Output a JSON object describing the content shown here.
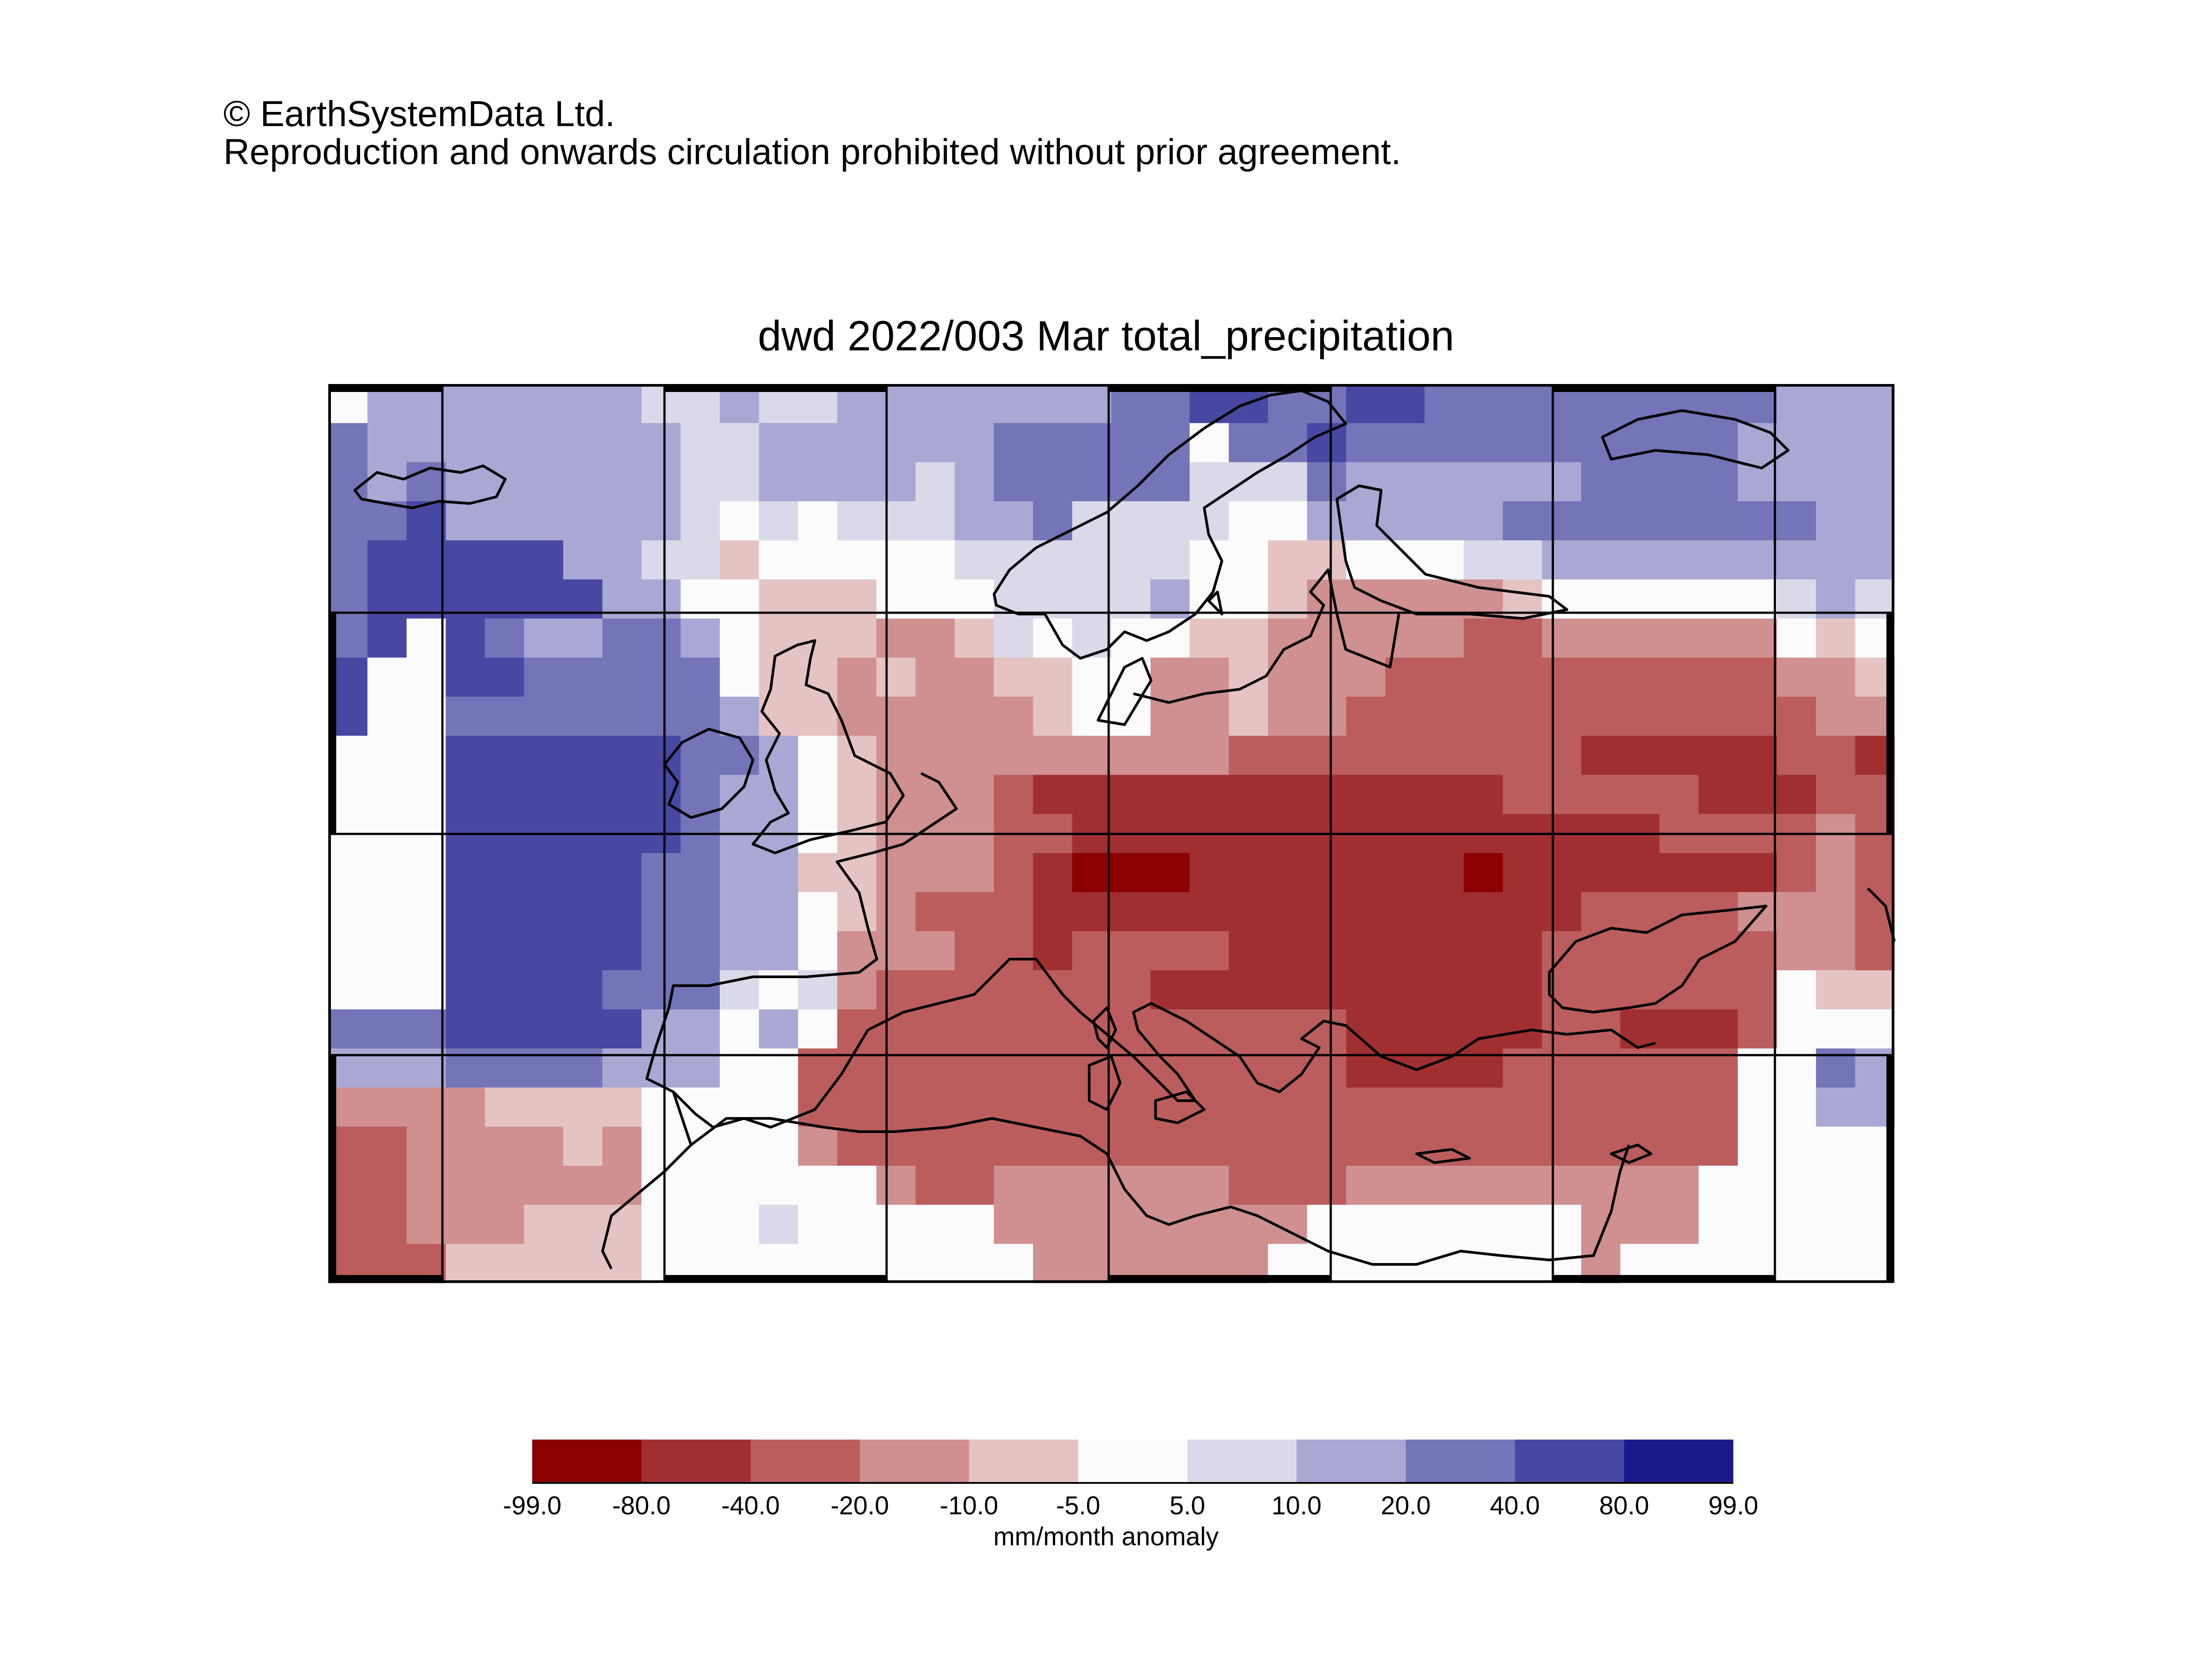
{
  "copyright": {
    "line1": "© EarthSystemData Ltd.",
    "line2": "Reproduction and onwards circulation prohibited without prior agreement."
  },
  "title": "dwd 2022/003 Mar total_precipitation",
  "colorbar": {
    "unit_label": "mm/month anomaly",
    "ticks": [
      "-99.0",
      "-80.0",
      "-40.0",
      "-20.0",
      "-10.0",
      "-5.0",
      "5.0",
      "10.0",
      "20.0",
      "40.0",
      "80.0",
      "99.0"
    ],
    "colors": [
      "#8b0000",
      "#a03030",
      "#bb5d5d",
      "#d09090",
      "#e6c3c3",
      "#fbfbfb",
      "#dad9ea",
      "#a9a8d4",
      "#7474b8",
      "#4848a2",
      "#1a1a8c"
    ]
  },
  "map": {
    "grid_cols": 40,
    "grid_rows": 23,
    "grid_note": "anomaly class index per cell: 0=-99..-80,1=-80..-40,2=-40..-20,3=-20..-10,4=-10..-5,5=-5..5,6=5..10,7=10..20,8=20..40,9=40..80,10=80..99",
    "rows": [
      "5777777766766777777788998899888888888777",
      "8777777776677777788888588988888888887777",
      "8787777776677776788888666877777788887777",
      "8897777776565666778666655777778888888877",
      "8999997766455555666666554455566777777777",
      "8999999775544455566667554333334555555676",
      "8959877887544433465655443333322333333545",
      "9559988888544343344553343332222222222334",
      "9558888888744333334553343322222222222233",
      "5559999998875433333333322222222211111221",
      "5559999998775433321111111111112222211122",
      "5559999998775433322111111111111111222232",
      "5559999988774433321000111111101111111232",
      "5559999988775432221111111111111122223332",
      "5559999988775333221222211111111222222332",
      "5559999888656322222221111111111222222544",
      "8889999977575222222222222211111221112555",
      "7778888777552222222222222211112222225587",
      "3333444455552222222222222222222222225577",
      "2233334355553222222222222222222222225555",
      "2233333355555532233333322233333333355555",
      "2233344455565555533333333555555533355555",
      "2224444455555555553333335555555535555555"
    ]
  }
}
